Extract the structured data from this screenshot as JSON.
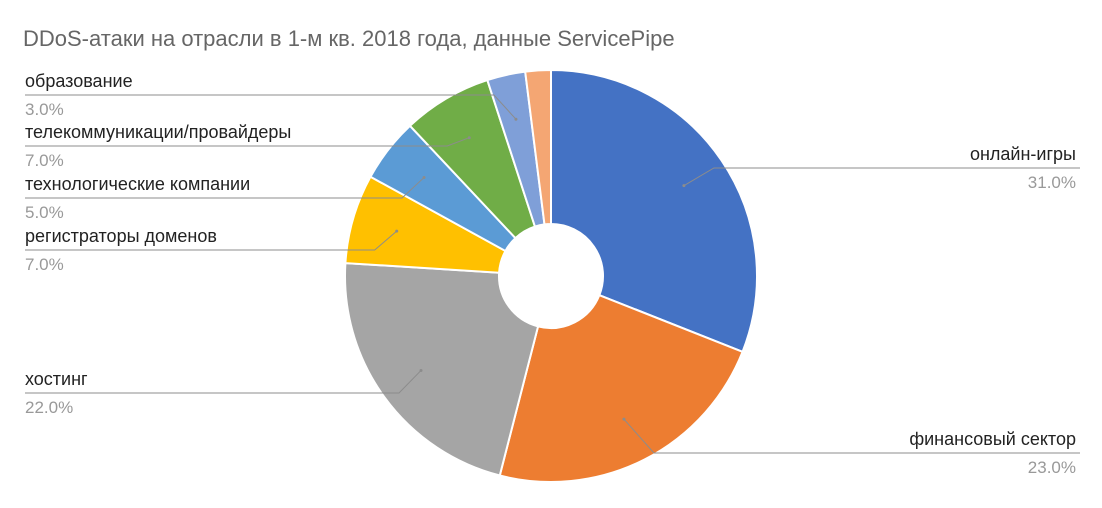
{
  "chart_data": {
    "type": "pie",
    "title": "DDoS-атаки на отрасли в 1-м кв. 2018 года, данные ServicePipe",
    "slices": [
      {
        "label": "онлайн-игры",
        "value": 31.0,
        "value_text": "31.0%",
        "color": "#4472C4"
      },
      {
        "label": "финансовый сектор",
        "value": 23.0,
        "value_text": "23.0%",
        "color": "#ED7D31"
      },
      {
        "label": "хостинг",
        "value": 22.0,
        "value_text": "22.0%",
        "color": "#A5A5A5"
      },
      {
        "label": "регистраторы доменов",
        "value": 7.0,
        "value_text": "7.0%",
        "color": "#FFC000"
      },
      {
        "label": "технологические компании",
        "value": 5.0,
        "value_text": "5.0%",
        "color": "#5B9BD5"
      },
      {
        "label": "телекоммуникации/провайдеры",
        "value": 7.0,
        "value_text": "7.0%",
        "color": "#70AD47"
      },
      {
        "label": "образование",
        "value": 3.0,
        "value_text": "3.0%",
        "color": "#7F9FD8"
      },
      {
        "label": "",
        "value": 2.0,
        "value_text": "",
        "color": "#F4A673"
      }
    ]
  }
}
